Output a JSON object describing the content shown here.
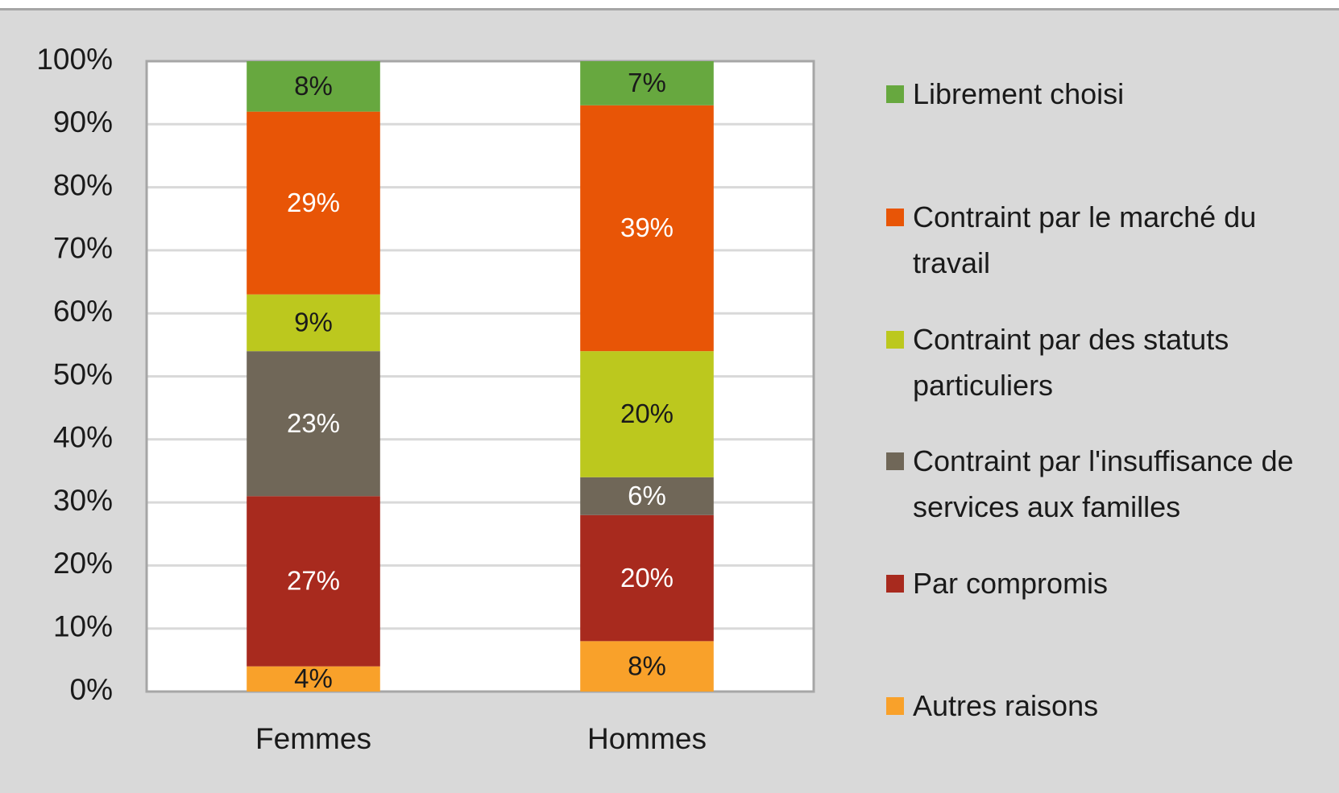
{
  "chart_data": {
    "type": "stacked_bar",
    "categories": [
      "Femmes",
      "Hommes"
    ],
    "ylim": [
      0,
      100
    ],
    "yticks": [
      {
        "value": 0,
        "label": "0%"
      },
      {
        "value": 10,
        "label": "10%"
      },
      {
        "value": 20,
        "label": "20%"
      },
      {
        "value": 30,
        "label": "30%"
      },
      {
        "value": 40,
        "label": "40%"
      },
      {
        "value": 50,
        "label": "50%"
      },
      {
        "value": 60,
        "label": "60%"
      },
      {
        "value": 70,
        "label": "70%"
      },
      {
        "value": 80,
        "label": "80%"
      },
      {
        "value": 90,
        "label": "90%"
      },
      {
        "value": 100,
        "label": "100%"
      }
    ],
    "grid": true,
    "legend": "right",
    "series": [
      {
        "name": "Autres raisons",
        "color": "#f9a12a",
        "label_color": "#1a1a1a",
        "values": [
          4,
          8
        ],
        "value_labels": [
          "4%",
          "8%"
        ]
      },
      {
        "name": "Par compromis",
        "color": "#a82a1e",
        "label_color": "#ffffff",
        "values": [
          27,
          20
        ],
        "value_labels": [
          "27%",
          "20%"
        ]
      },
      {
        "name": "Contraint par l'insuffisance de services aux familles",
        "color": "#706758",
        "label_color": "#ffffff",
        "values": [
          23,
          6
        ],
        "value_labels": [
          "23%",
          "6%"
        ]
      },
      {
        "name": "Contraint par des statuts particuliers",
        "color": "#bcc81e",
        "label_color": "#1a1a1a",
        "values": [
          9,
          20
        ],
        "value_labels": [
          "9%",
          "20%"
        ]
      },
      {
        "name": "Contraint par le marché du travail",
        "color": "#e85506",
        "label_color": "#ffffff",
        "values": [
          29,
          39
        ],
        "value_labels": [
          "29%",
          "39%"
        ]
      },
      {
        "name": "Librement choisi",
        "color": "#67a83f",
        "label_color": "#1a1a1a",
        "values": [
          8,
          7
        ],
        "value_labels": [
          "8%",
          "7%"
        ]
      }
    ]
  }
}
